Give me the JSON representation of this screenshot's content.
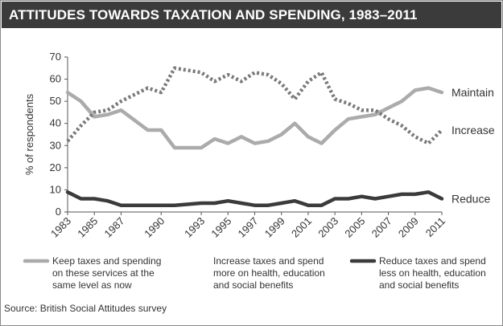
{
  "chart_data": {
    "type": "line",
    "title": "ATTITUDES TOWARDS TAXATION AND SPENDING, 1983–2011",
    "ylabel": "% of respondents",
    "xlabel": "",
    "ylim": [
      0,
      70
    ],
    "yticks": [
      0,
      10,
      20,
      30,
      40,
      50,
      60,
      70
    ],
    "xlim": [
      1983,
      2011
    ],
    "xticks": [
      1983,
      1985,
      1987,
      1990,
      1993,
      1995,
      1997,
      1999,
      2001,
      2003,
      2005,
      2007,
      2009,
      2011
    ],
    "tick_labels": [
      "1983",
      "1985",
      "1987",
      "1990",
      "1993",
      "1995",
      "1997",
      "1999",
      "2001",
      "2003",
      "2005",
      "2007",
      "2009",
      "2011"
    ],
    "grid": false,
    "series": [
      {
        "name": "Maintain",
        "line_label": "Maintain",
        "legend": [
          "Keep taxes and spending",
          "on these services at the",
          "same level as now"
        ],
        "style": "solid-light",
        "color": "#ababab",
        "x": [
          1983,
          1984,
          1985,
          1986,
          1987,
          1989,
          1990,
          1991,
          1993,
          1994,
          1995,
          1996,
          1997,
          1998,
          1999,
          2000,
          2001,
          2002,
          2003,
          2004,
          2005,
          2006,
          2007,
          2008,
          2009,
          2010,
          2011
        ],
        "values": [
          54,
          50,
          43,
          44,
          46,
          37,
          37,
          29,
          29,
          33,
          31,
          34,
          31,
          32,
          35,
          40,
          34,
          31,
          37,
          42,
          43,
          44,
          47,
          50,
          55,
          56,
          54
        ]
      },
      {
        "name": "Increase",
        "line_label": "Increase",
        "legend": [
          "Increase taxes and spend",
          "more on health, education",
          "and social benefits"
        ],
        "style": "dotted",
        "color": "#7a7a7a",
        "x": [
          1983,
          1984,
          1985,
          1986,
          1987,
          1989,
          1990,
          1991,
          1993,
          1994,
          1995,
          1996,
          1997,
          1998,
          1999,
          2000,
          2001,
          2002,
          2003,
          2004,
          2005,
          2006,
          2007,
          2008,
          2009,
          2010,
          2011
        ],
        "values": [
          32,
          39,
          45,
          46,
          50,
          56,
          54,
          65,
          63,
          59,
          62,
          59,
          63,
          62,
          58,
          51,
          59,
          63,
          51,
          49,
          46,
          46,
          42,
          39,
          34,
          31,
          37
        ]
      },
      {
        "name": "Reduce",
        "line_label": "Reduce",
        "legend": [
          "Reduce taxes and spend",
          "less on health, education",
          "and social benefits"
        ],
        "style": "solid-dark",
        "color": "#3b3b3b",
        "x": [
          1983,
          1984,
          1985,
          1986,
          1987,
          1989,
          1990,
          1991,
          1993,
          1994,
          1995,
          1996,
          1997,
          1998,
          1999,
          2000,
          2001,
          2002,
          2003,
          2004,
          2005,
          2006,
          2007,
          2008,
          2009,
          2010,
          2011
        ],
        "values": [
          9,
          6,
          6,
          5,
          3,
          3,
          3,
          3,
          4,
          4,
          5,
          4,
          3,
          3,
          4,
          5,
          3,
          3,
          6,
          6,
          7,
          6,
          7,
          8,
          8,
          9,
          6
        ]
      }
    ]
  },
  "source": "Source: British Social Attitudes survey"
}
